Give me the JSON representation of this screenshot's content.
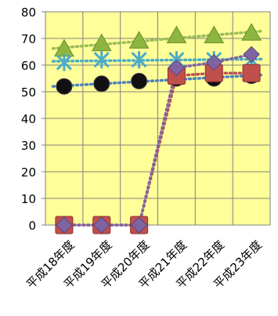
{
  "chart_data": {
    "type": "line",
    "title": "",
    "xlabel": "",
    "ylabel": "",
    "categories": [
      "平成18年度",
      "平成19年度",
      "平成20年度",
      "平成21年度",
      "平成22年度",
      "平成23年度"
    ],
    "ylim": [
      0,
      80
    ],
    "yticks": [
      0,
      10,
      20,
      30,
      40,
      50,
      60,
      70,
      80
    ],
    "grid": true,
    "legend": "none",
    "plot_background": "#ffff99",
    "series": [
      {
        "values": [
          66,
          68,
          69,
          71,
          71,
          72
        ],
        "color": "#8db53f",
        "marker": "triangle",
        "trend_color": "#9bbb59"
      },
      {
        "values": [
          61,
          62,
          62,
          62,
          62,
          62
        ],
        "color": "#4bacc6",
        "marker": "star",
        "trend_color": "#4bacc6"
      },
      {
        "values": [
          52,
          53,
          54,
          55,
          55,
          56
        ],
        "color": "#111111",
        "marker": "circle",
        "trend_color": "#4f81bd"
      },
      {
        "values": [
          0,
          0,
          0,
          56,
          57,
          57
        ],
        "color": "#c0504d",
        "marker": "square",
        "trend_color": "#c0504d"
      },
      {
        "values": [
          0,
          0,
          0,
          59,
          61,
          64
        ],
        "color": "#8064a2",
        "marker": "diamond",
        "trend_color": "#8064a2"
      }
    ]
  }
}
